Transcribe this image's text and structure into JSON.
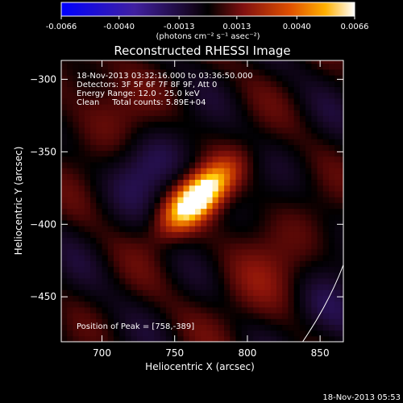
{
  "chart_data": {
    "type": "heatmap",
    "title": "Reconstructed RHESSI Image",
    "xlabel": "Heliocentric X (arcsec)",
    "ylabel": "Heliocentric Y (arcsec)",
    "xlim": [
      672,
      866
    ],
    "ylim": [
      -481,
      -287
    ],
    "x_ticks": [
      700,
      750,
      800,
      850
    ],
    "y_ticks": [
      -300,
      -350,
      -400,
      -450
    ],
    "colorbar": {
      "min": -0.0066,
      "max": 0.0066,
      "ticks": [
        "-0.0066",
        "-0.0040",
        "-0.0013",
        "0.0013",
        "0.0040",
        "0.0066"
      ],
      "units": "(photons cm⁻² s⁻¹ asec⁻²)"
    },
    "annotations": [
      "18-Nov-2013 03:32:16.000 to 03:36:50.000",
      "Detectors: 3F 5F 6F 7F 8F 9F, Att 0",
      "Energy Range: 12.0 - 25.0 keV",
      "Clean     Total counts: 5.89E+04"
    ],
    "peak_label": "Position of Peak = [758,-389]",
    "peak": [
      758,
      -389
    ],
    "timestamp": "18-Nov-2013 05:53",
    "limb_arc": [
      [
        838,
        -481
      ],
      [
        866,
        -428
      ]
    ]
  }
}
